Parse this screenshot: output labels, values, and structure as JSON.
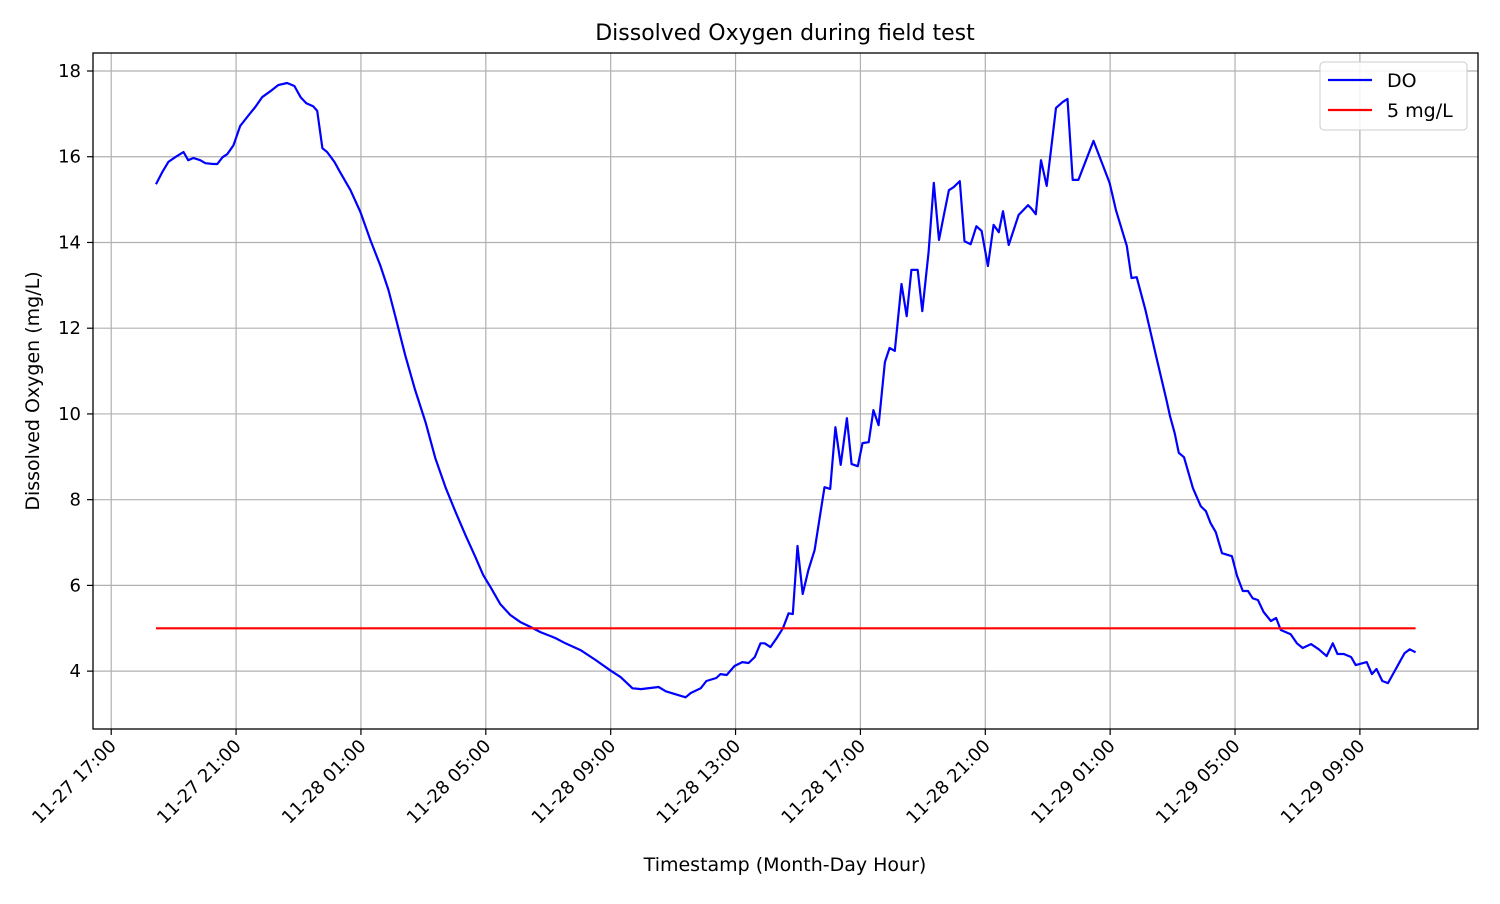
{
  "chart_data": {
    "type": "line",
    "title": "Dissolved Oxygen during field test",
    "xlabel": "Timestamp (Month-Day Hour)",
    "ylabel": "Dissolved Oxygen (mg/L)",
    "xlim": [
      "11-27 16:25",
      "11-29 12:47"
    ],
    "ylim": [
      2.65,
      18.42
    ],
    "grid": true,
    "legend_position": "top-right",
    "x_ticks": [
      "11-27 17:00",
      "11-27 21:00",
      "11-28 01:00",
      "11-28 05:00",
      "11-28 09:00",
      "11-28 13:00",
      "11-28 17:00",
      "11-28 21:00",
      "11-29 01:00",
      "11-29 05:00",
      "11-29 09:00"
    ],
    "y_ticks": [
      4,
      6,
      8,
      10,
      12,
      14,
      16,
      18
    ],
    "series": [
      {
        "name": "DO",
        "color": "#0000ff",
        "x": [
          "11-27 18:26",
          "11-27 18:38",
          "11-27 18:50",
          "11-27 19:03",
          "11-27 19:19",
          "11-27 19:28",
          "11-27 19:38",
          "11-27 19:51",
          "11-27 20:01",
          "11-27 20:16",
          "11-27 20:24",
          "11-27 20:34",
          "11-27 20:43",
          "11-27 20:55",
          "11-27 21:08",
          "11-27 21:23",
          "11-27 21:37",
          "11-27 21:50",
          "11-27 22:06",
          "11-27 22:21",
          "11-27 22:38",
          "11-27 22:52",
          "11-27 23:04",
          "11-27 23:15",
          "11-27 23:28",
          "11-27 23:36",
          "11-27 23:46",
          "11-27 23:55",
          "11-28 00:09",
          "11-28 00:20",
          "11-28 00:40",
          "11-28 00:59",
          "11-28 01:18",
          "11-28 01:37",
          "11-28 01:53",
          "11-28 02:08",
          "11-28 02:25",
          "11-28 02:44",
          "11-28 03:04",
          "11-28 03:23",
          "11-28 03:43",
          "11-28 04:02",
          "11-28 04:21",
          "11-28 04:40",
          "11-28 04:55",
          "11-28 05:09",
          "11-28 05:28",
          "11-28 05:47",
          "11-28 06:07",
          "11-28 06:26",
          "11-28 06:45",
          "11-28 07:04",
          "11-28 07:14",
          "11-28 07:33",
          "11-28 08:02",
          "11-28 08:31",
          "11-28 08:59",
          "11-28 09:19",
          "11-28 09:42",
          "11-28 09:58",
          "11-28 10:32",
          "11-28 10:46",
          "11-28 11:24",
          "11-28 11:34",
          "11-28 11:53",
          "11-28 12:04",
          "11-28 12:23",
          "11-28 12:31",
          "11-28 12:43",
          "11-28 12:58",
          "11-28 13:13",
          "11-28 13:25",
          "11-28 13:37",
          "11-28 13:48",
          "11-28 13:56",
          "11-28 14:07",
          "11-28 14:19",
          "11-28 14:31",
          "11-28 14:42",
          "11-28 14:50",
          "11-28 14:59",
          "11-28 15:09",
          "11-28 15:20",
          "11-28 15:32",
          "11-28 15:41",
          "11-28 15:51",
          "11-28 16:02",
          "11-28 16:12",
          "11-28 16:22",
          "11-28 16:34",
          "11-28 16:43",
          "11-28 16:55",
          "11-28 17:04",
          "11-28 17:16",
          "11-28 17:25",
          "11-28 17:35",
          "11-28 17:47",
          "11-28 17:56",
          "11-28 18:06",
          "11-28 18:19",
          "11-28 18:29",
          "11-28 18:38",
          "11-28 18:50",
          "11-28 18:59",
          "11-28 19:11",
          "11-28 19:21",
          "11-28 19:31",
          "11-28 19:40",
          "11-28 19:50",
          "11-28 19:59",
          "11-28 20:11",
          "11-28 20:20",
          "11-28 20:32",
          "11-28 20:43",
          "11-28 20:53",
          "11-28 21:05",
          "11-28 21:16",
          "11-28 21:26",
          "11-28 21:34",
          "11-28 21:45",
          "11-28 22:04",
          "11-28 22:22",
          "11-28 22:28",
          "11-28 22:37",
          "11-28 22:47",
          "11-28 22:58",
          "11-28 23:16",
          "11-28 23:29",
          "11-28 23:38",
          "11-28 23:48",
          "11-28 23:59",
          "11-29 00:28",
          "11-29 00:59",
          "11-29 01:11",
          "11-29 01:32",
          "11-29 01:41",
          "11-29 01:51",
          "11-29 02:08",
          "11-29 02:28",
          "11-29 02:49",
          "11-29 02:55",
          "11-29 03:04",
          "11-29 03:12",
          "11-29 03:22",
          "11-29 03:39",
          "11-29 03:54",
          "11-29 04:04",
          "11-29 04:13",
          "11-29 04:23",
          "11-29 04:35",
          "11-29 04:54",
          "11-29 05:04",
          "11-29 05:15",
          "11-29 05:25",
          "11-29 05:34",
          "11-29 05:44",
          "11-29 05:55",
          "11-29 06:09",
          "11-29 06:19",
          "11-29 06:28",
          "11-29 06:47",
          "11-29 06:59",
          "11-29 07:10",
          "11-29 07:26",
          "11-29 07:41",
          "11-29 07:56",
          "11-29 08:08",
          "11-29 08:17",
          "11-29 08:29",
          "11-29 08:43",
          "11-29 08:52",
          "11-29 09:13",
          "11-29 09:23",
          "11-29 09:32",
          "11-29 09:43",
          "11-29 09:54",
          "11-29 10:09",
          "11-29 10:26",
          "11-29 10:36",
          "11-29 10:47"
        ],
        "y": [
          15.36,
          15.64,
          15.88,
          15.99,
          16.11,
          15.92,
          15.97,
          15.92,
          15.85,
          15.83,
          15.83,
          15.99,
          16.06,
          16.27,
          16.72,
          16.95,
          17.16,
          17.39,
          17.53,
          17.67,
          17.72,
          17.65,
          17.39,
          17.25,
          17.18,
          17.07,
          16.2,
          16.11,
          15.88,
          15.64,
          15.22,
          14.71,
          14.06,
          13.47,
          12.89,
          12.19,
          11.37,
          10.56,
          9.81,
          8.97,
          8.27,
          7.71,
          7.17,
          6.66,
          6.24,
          5.96,
          5.56,
          5.31,
          5.14,
          5.03,
          4.91,
          4.82,
          4.77,
          4.65,
          4.49,
          4.26,
          4.02,
          3.86,
          3.6,
          3.58,
          3.63,
          3.53,
          3.39,
          3.49,
          3.6,
          3.77,
          3.84,
          3.93,
          3.91,
          4.12,
          4.21,
          4.19,
          4.33,
          4.65,
          4.65,
          4.56,
          4.77,
          5.0,
          5.35,
          5.33,
          6.92,
          5.8,
          6.36,
          6.82,
          7.52,
          8.29,
          8.25,
          9.69,
          8.81,
          9.9,
          8.83,
          8.78,
          9.32,
          9.34,
          10.09,
          9.74,
          11.21,
          11.54,
          11.47,
          13.03,
          12.28,
          13.36,
          13.36,
          12.4,
          13.78,
          15.39,
          14.06,
          14.62,
          15.22,
          15.29,
          15.43,
          14.03,
          13.96,
          14.38,
          14.27,
          13.45,
          14.41,
          14.24,
          14.73,
          13.94,
          14.64,
          14.87,
          14.8,
          14.66,
          15.92,
          15.32,
          17.14,
          17.28,
          17.35,
          15.46,
          15.46,
          16.37,
          15.39,
          14.76,
          13.92,
          13.17,
          13.19,
          12.42,
          11.37,
          10.28,
          9.95,
          9.55,
          9.09,
          8.99,
          8.27,
          7.85,
          7.73,
          7.45,
          7.24,
          6.75,
          6.68,
          6.22,
          5.87,
          5.87,
          5.7,
          5.66,
          5.38,
          5.17,
          5.24,
          4.96,
          4.86,
          4.65,
          4.54,
          4.63,
          4.51,
          4.35,
          4.65,
          4.4,
          4.4,
          4.33,
          4.14,
          4.21,
          3.93,
          4.05,
          3.77,
          3.72,
          4.05,
          4.42,
          4.51,
          4.44
        ]
      },
      {
        "name": "5 mg/L",
        "color": "#ff0000",
        "x": [
          "11-27 18:26",
          "11-29 10:47"
        ],
        "y": [
          5,
          5
        ]
      }
    ]
  }
}
